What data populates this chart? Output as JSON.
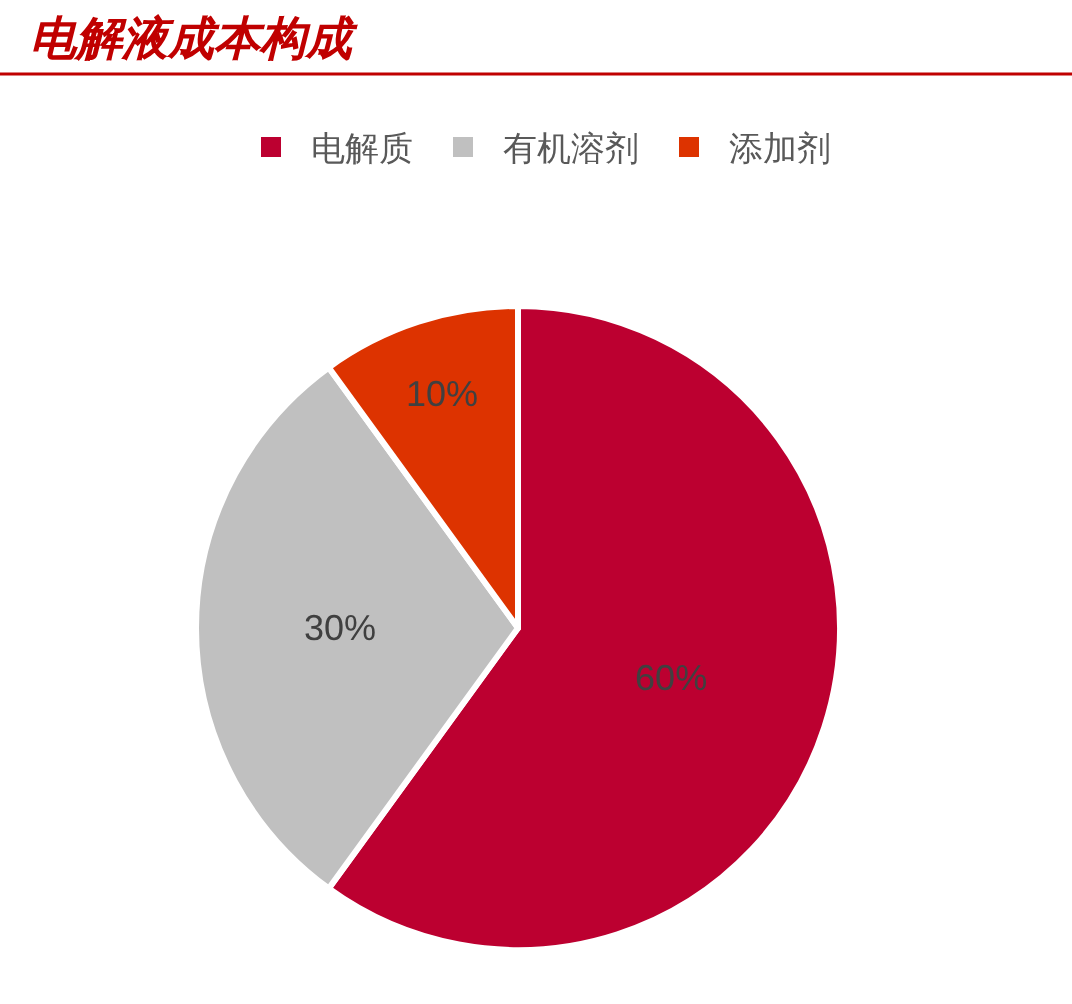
{
  "chart_data": {
    "type": "pie",
    "title": "电解液成本构成",
    "categories": [
      "电解质",
      "有机溶剂",
      "添加剂"
    ],
    "values": [
      60,
      30,
      10
    ],
    "colors": [
      "#bc0030",
      "#c0c0c0",
      "#dd3300"
    ],
    "value_labels": [
      "60%",
      "30%",
      "10%"
    ],
    "legend": "top"
  }
}
